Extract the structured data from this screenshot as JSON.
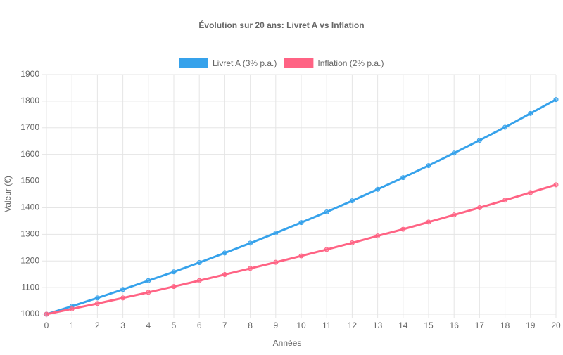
{
  "chart_data": {
    "type": "line",
    "title": "Évolution sur 20 ans: Livret A vs Inflation",
    "x_label": "Années",
    "y_label": "Valeur (€)",
    "x": [
      0,
      1,
      2,
      3,
      4,
      5,
      6,
      7,
      8,
      9,
      10,
      11,
      12,
      13,
      14,
      15,
      16,
      17,
      18,
      19,
      20
    ],
    "series": [
      {
        "name": "Livret A (3% p.a.)",
        "color": "#36a2eb",
        "values": [
          1000,
          1030,
          1061,
          1093,
          1126,
          1159,
          1194,
          1230,
          1267,
          1305,
          1344,
          1384,
          1426,
          1469,
          1513,
          1558,
          1605,
          1653,
          1702,
          1754,
          1806
        ]
      },
      {
        "name": "Inflation (2% p.a.)",
        "color": "#ff6384",
        "values": [
          1000,
          1020,
          1040,
          1061,
          1082,
          1104,
          1126,
          1149,
          1172,
          1195,
          1219,
          1243,
          1268,
          1294,
          1319,
          1346,
          1373,
          1400,
          1428,
          1457,
          1486
        ]
      }
    ],
    "xlim": [
      0,
      20
    ],
    "xticks": [
      0,
      1,
      2,
      3,
      4,
      5,
      6,
      7,
      8,
      9,
      10,
      11,
      12,
      13,
      14,
      15,
      16,
      17,
      18,
      19,
      20
    ],
    "ylim": [
      1000,
      1900
    ],
    "yticks": [
      1000,
      1100,
      1200,
      1300,
      1400,
      1500,
      1600,
      1700,
      1800,
      1900
    ],
    "grid": true,
    "legend": "top"
  }
}
